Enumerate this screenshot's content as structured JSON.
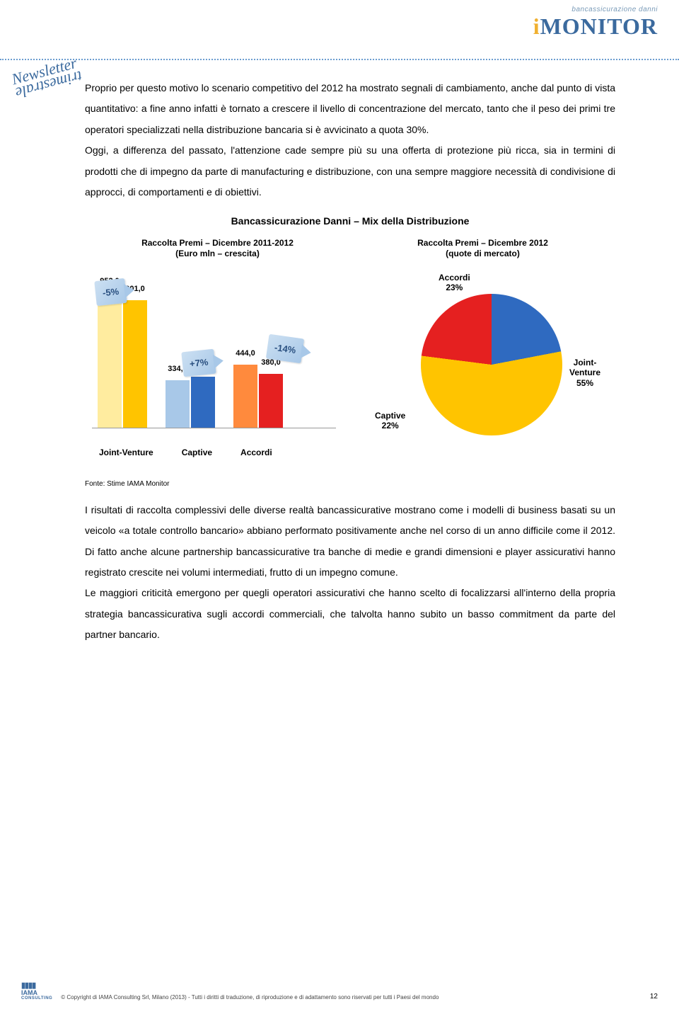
{
  "header": {
    "brand_sub": "bancassicurazione danni",
    "brand_main": "iMONITOR",
    "stamp_line1": "Newsletter",
    "stamp_line2": "trimestrale"
  },
  "paragraphs": {
    "p1": "Proprio per questo motivo lo scenario competitivo del 2012 ha mostrato segnali di cambiamento, anche dal punto di vista quantitativo: a fine anno infatti è tornato a crescere il livello di concentrazione del mercato, tanto che il peso dei primi tre operatori specializzati nella distribuzione bancaria si è avvicinato a quota 30%.",
    "p2": "Oggi, a differenza del passato, l'attenzione cade sempre più su una offerta di protezione più ricca, sia in termini di prodotti che di impegno da parte di manufacturing e distribuzione, con una sempre maggiore necessità di condivisione di approcci, di comportamenti e di obiettivi.",
    "p3": "I risultati di raccolta complessivi delle diverse realtà bancassicurative mostrano come i modelli di business basati su un veicolo «a totale controllo bancario» abbiano performato positivamente anche nel corso di un anno difficile come il 2012. Di fatto anche alcune partnership bancassicurative tra banche di medie e grandi dimensioni e player assicurativi hanno registrato crescite nei volumi intermediati, frutto di un impegno comune.",
    "p4": "Le maggiori criticità emergono per quegli operatori assicurativi che hanno scelto di focalizzarsi all'interno della propria strategia bancassicurativa sugli accordi commerciali, che talvolta hanno subito un basso commitment da parte del partner bancario."
  },
  "chart": {
    "title": "Bancassicurazione Danni – Mix della Distribuzione",
    "left_subtitle_1": "Raccolta Premi – Dicembre 2011-2012",
    "left_subtitle_2": "(Euro mln – crescita)",
    "right_subtitle_1": "Raccolta Premi – Dicembre 2012",
    "right_subtitle_2": "(quote di mercato)",
    "source": "Fonte: Stime IAMA Monitor"
  },
  "bar_chart": {
    "ymax": 1000,
    "arrows": {
      "a1": "-5%",
      "a2": "+7%",
      "a3": "-14%"
    },
    "bars": [
      {
        "label": "952,0",
        "value": 952,
        "color": "#ffec9f"
      },
      {
        "label": "901,0",
        "value": 901,
        "color": "#ffc400"
      },
      {
        "label": "334,0",
        "value": 334,
        "color": "#a8c8e8"
      },
      {
        "label": "359,0",
        "value": 359,
        "color": "#2f6ac0"
      },
      {
        "label": "444,0",
        "value": 444,
        "color": "#ff8a3d"
      },
      {
        "label": "380,0",
        "value": 380,
        "color": "#e52020"
      }
    ],
    "legend": {
      "l1": "Joint-Venture",
      "l2": "Captive",
      "l3": "Accordi"
    }
  },
  "pie_chart": {
    "slices": [
      {
        "name": "Accordi",
        "value": 23,
        "color": "#e52020"
      },
      {
        "name": "Captive",
        "value": 22,
        "color": "#2f6ac0"
      },
      {
        "name": "Joint-Venture",
        "value": 55,
        "color": "#ffc400"
      }
    ],
    "labels": {
      "accordi": "Accordi\n23%",
      "captive": "Captive\n22%",
      "jv": "Joint-\nVenture\n55%"
    }
  },
  "footer": {
    "logo": "IAMA",
    "logo_sub": "CONSULTING",
    "text": "© Copyright di IAMA Consulting Srl, Milano (2013) - Tutti i diritti di traduzione, di riproduzione e di adattamento sono riservati per tutti i Paesi del mondo",
    "page": "12"
  }
}
